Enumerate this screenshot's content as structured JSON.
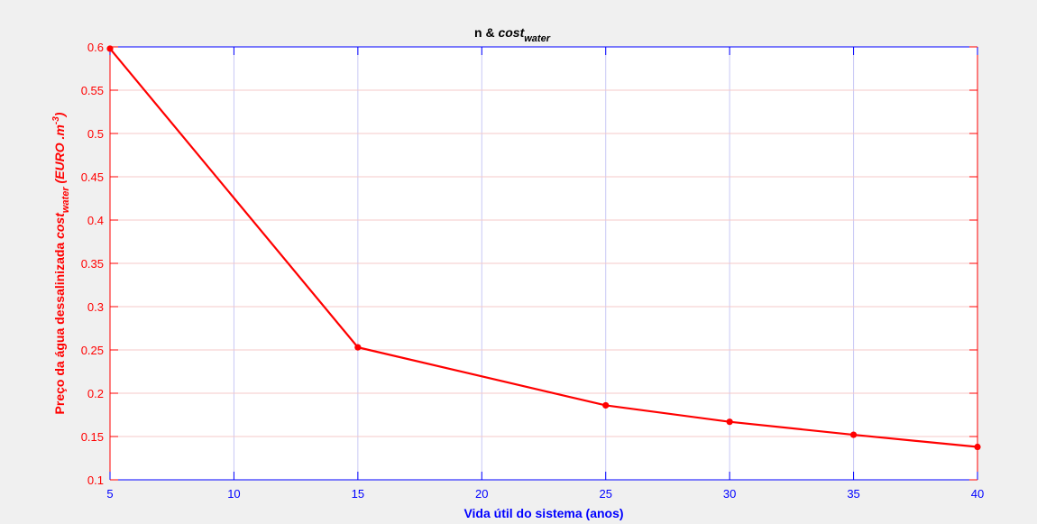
{
  "figure": {
    "background": "#f0f0f0",
    "plot_background": "#ffffff"
  },
  "chart_data": {
    "type": "line",
    "title": {
      "main": "n & ",
      "italic": "cost",
      "subscript": "water"
    },
    "xlabel": "Vida útil do sistema (anos)",
    "ylabel": {
      "prefix": "Preço da água dessalinizada ",
      "cost": "cost",
      "subscript": "water",
      "unit_open": " (EURO .m",
      "superscript": "-3",
      "unit_close": ")"
    },
    "xlim": [
      5,
      40
    ],
    "ylim": [
      0.1,
      0.6
    ],
    "xticks": [
      5,
      10,
      15,
      20,
      25,
      30,
      35,
      40
    ],
    "yticks": [
      0.1,
      0.15,
      0.2,
      0.25,
      0.3,
      0.35,
      0.4,
      0.45,
      0.5,
      0.55,
      0.6
    ],
    "x_tick_labels": [
      "5",
      "10",
      "15",
      "20",
      "25",
      "30",
      "35",
      "40"
    ],
    "y_tick_labels": [
      "0.1",
      "0.15",
      "0.2",
      "0.25",
      "0.3",
      "0.35",
      "0.4",
      "0.45",
      "0.5",
      "0.55",
      "0.6"
    ],
    "grid": true,
    "series": [
      {
        "x": [
          5,
          15,
          25,
          30,
          35,
          40
        ],
        "y": [
          0.598,
          0.253,
          0.186,
          0.167,
          0.152,
          0.138
        ],
        "color": "#ff0000",
        "marker": "circle"
      }
    ],
    "colors": {
      "x_axis": "#0000ff",
      "y_axis": "#ff0000",
      "grid_vertical": "#c8c8f5",
      "grid_horizontal": "#f5c8c8",
      "title": "#000000"
    }
  }
}
